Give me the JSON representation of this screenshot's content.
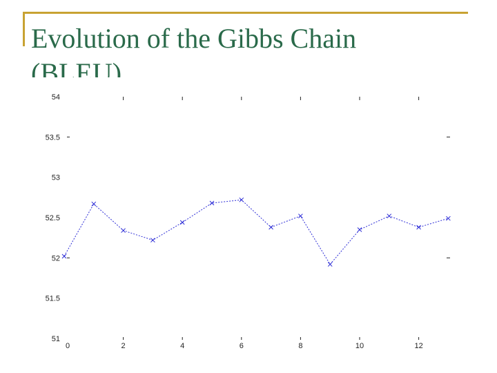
{
  "slide": {
    "title_line1": "Evolution of the Gibbs Chain",
    "title_line2": "(BLEU)",
    "accent_color": "#c8a232",
    "title_color": "#2a6a4a"
  },
  "chart_data": {
    "type": "line",
    "title": "",
    "xlabel": "",
    "ylabel": "",
    "xlim": [
      0,
      13
    ],
    "ylim": [
      51,
      54
    ],
    "x_ticks": [
      0,
      2,
      4,
      6,
      8,
      10,
      12
    ],
    "y_ticks": [
      51,
      51.5,
      52,
      52.5,
      53,
      53.5,
      54
    ],
    "x_tick_labels": [
      "0",
      "2",
      "4",
      "6",
      "8",
      "10",
      "12"
    ],
    "y_tick_labels": [
      "51",
      "51.5",
      "52",
      "52.5",
      "53",
      "53.5",
      "54"
    ],
    "grid": false,
    "series": [
      {
        "x": [
          0,
          1,
          2,
          3,
          4,
          5,
          6,
          7,
          8,
          9,
          10,
          11,
          12,
          13
        ],
        "values": [
          52.02,
          52.67,
          52.34,
          52.22,
          52.44,
          52.68,
          52.72,
          52.38,
          52.52,
          51.92,
          52.35,
          52.52,
          52.38,
          52.49
        ],
        "color": "#2b2bd6",
        "marker": "x",
        "line_style": "dotted"
      }
    ]
  }
}
